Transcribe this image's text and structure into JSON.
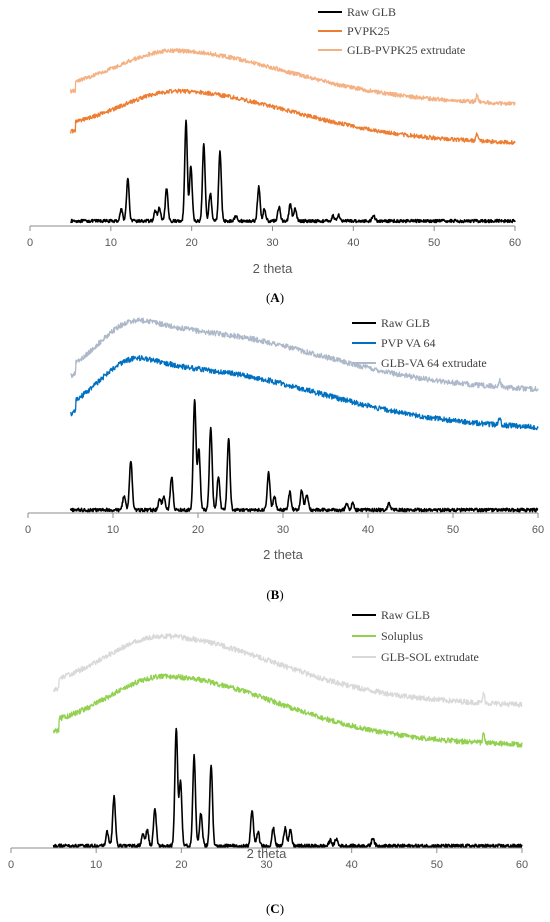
{
  "panels": [
    {
      "label": "(A)",
      "label_letter": "A",
      "chart_data": {
        "type": "line",
        "xlabel": "2 theta",
        "ylabel": "",
        "xlim": [
          0,
          60
        ],
        "xticks": [
          0,
          10,
          20,
          30,
          40,
          50,
          60
        ],
        "legend_position": "top-right",
        "series": [
          {
            "name": "Raw GLB",
            "color": "#000000",
            "kind": "crystalline",
            "peaks": [
              [
                11.3,
                0.12
              ],
              [
                12.1,
                0.42
              ],
              [
                15.5,
                0.1
              ],
              [
                16.0,
                0.13
              ],
              [
                16.9,
                0.32
              ],
              [
                19.3,
                1.0
              ],
              [
                19.9,
                0.55
              ],
              [
                21.5,
                0.77
              ],
              [
                22.3,
                0.28
              ],
              [
                23.5,
                0.7
              ],
              [
                25.5,
                0.06
              ],
              [
                28.3,
                0.34
              ],
              [
                29.0,
                0.12
              ],
              [
                30.8,
                0.14
              ],
              [
                32.2,
                0.17
              ],
              [
                32.8,
                0.12
              ],
              [
                37.5,
                0.05
              ],
              [
                38.2,
                0.06
              ],
              [
                42.5,
                0.06
              ]
            ]
          },
          {
            "name": "PVPK25",
            "color": "#ED7D31",
            "kind": "amorphous",
            "center": 18.5,
            "width": 9,
            "height": 0.7,
            "peaks": [
              [
                55.3,
                0.12
              ]
            ]
          },
          {
            "name": "GLB-PVPK25 extrudate",
            "color": "#F4B183",
            "kind": "amorphous",
            "center": 18.0,
            "width": 9,
            "height": 0.72,
            "peaks": [
              [
                55.3,
                0.12
              ]
            ]
          }
        ]
      }
    },
    {
      "label": "(B)",
      "label_letter": "B",
      "chart_data": {
        "type": "line",
        "xlabel": "2 theta",
        "ylabel": "",
        "xlim": [
          0,
          60
        ],
        "xticks": [
          0,
          10,
          20,
          30,
          40,
          50,
          60
        ],
        "legend_position": "top-right",
        "series": [
          {
            "name": "Raw GLB",
            "color": "#000000",
            "kind": "crystalline",
            "peaks": [
              [
                11.3,
                0.13
              ],
              [
                12.1,
                0.45
              ],
              [
                15.5,
                0.1
              ],
              [
                16.0,
                0.12
              ],
              [
                16.9,
                0.3
              ],
              [
                19.6,
                1.0
              ],
              [
                20.1,
                0.55
              ],
              [
                21.5,
                0.76
              ],
              [
                22.4,
                0.3
              ],
              [
                23.6,
                0.65
              ],
              [
                28.3,
                0.34
              ],
              [
                29.0,
                0.12
              ],
              [
                30.8,
                0.16
              ],
              [
                32.2,
                0.18
              ],
              [
                32.8,
                0.14
              ],
              [
                37.5,
                0.05
              ],
              [
                38.2,
                0.06
              ],
              [
                42.5,
                0.06
              ]
            ]
          },
          {
            "name": "PVP VA 64",
            "color": "#0070C0",
            "kind": "amorphous2",
            "center": 20.0,
            "width": 10,
            "height": 0.62,
            "center2": 11.5,
            "height2": 0.42,
            "peaks": [
              [
                55.5,
                0.1
              ]
            ]
          },
          {
            "name": "GLB-VA 64 extrudate",
            "color": "#ADB9CA",
            "kind": "amorphous2",
            "center": 20.0,
            "width": 10,
            "height": 0.62,
            "center2": 11.5,
            "height2": 0.42,
            "peaks": [
              [
                55.5,
                0.1
              ]
            ]
          }
        ]
      }
    },
    {
      "label": "(C)",
      "label_letter": "C",
      "chart_data": {
        "type": "line",
        "xlabel": "2 theta",
        "ylabel": "",
        "xlim": [
          0,
          60
        ],
        "xticks": [
          0,
          10,
          20,
          30,
          40,
          50,
          60
        ],
        "legend_position": "top-right",
        "series": [
          {
            "name": "Raw GLB",
            "color": "#000000",
            "kind": "crystalline",
            "peaks": [
              [
                11.3,
                0.12
              ],
              [
                12.1,
                0.42
              ],
              [
                15.5,
                0.1
              ],
              [
                16.0,
                0.13
              ],
              [
                16.9,
                0.32
              ],
              [
                19.4,
                1.0
              ],
              [
                19.9,
                0.55
              ],
              [
                21.5,
                0.76
              ],
              [
                22.3,
                0.28
              ],
              [
                23.5,
                0.68
              ],
              [
                28.3,
                0.3
              ],
              [
                29.0,
                0.12
              ],
              [
                30.8,
                0.15
              ],
              [
                32.2,
                0.16
              ],
              [
                32.8,
                0.13
              ],
              [
                37.5,
                0.05
              ],
              [
                38.2,
                0.06
              ],
              [
                42.5,
                0.07
              ]
            ]
          },
          {
            "name": "Soluplus",
            "color": "#92D050",
            "kind": "amorphous",
            "center": 18.3,
            "width": 8.5,
            "height": 0.75,
            "peaks": [
              [
                55.5,
                0.12
              ]
            ]
          },
          {
            "name": "GLB-SOL extrudate",
            "color": "#D9D9D9",
            "kind": "amorphous",
            "center": 18.0,
            "width": 8.5,
            "height": 0.75,
            "peaks": [
              [
                55.5,
                0.12
              ]
            ]
          }
        ]
      }
    }
  ]
}
